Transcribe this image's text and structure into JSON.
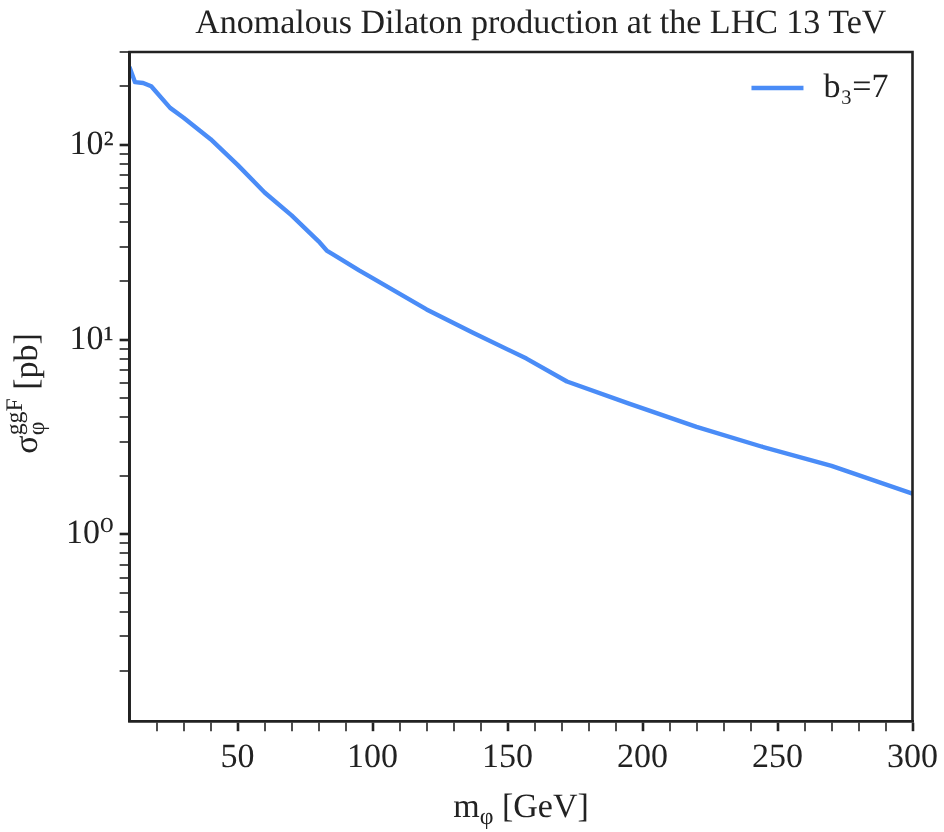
{
  "chart_data": {
    "type": "line",
    "title": "Anomalous Dilaton production at the LHC 13 TeV",
    "xlabel": "m$_{φ}$ [GeV]",
    "ylabel": "σ$_{φ}$$^{ggF}$ [pb]",
    "log": "y",
    "legend": "top right",
    "grid": false,
    "marker": "none",
    "line_style": "solid",
    "xlim": [
      10,
      300
    ],
    "ylim": [
      0.11,
      300
    ],
    "xticks": [
      {
        "value": 20,
        "label": null
      },
      {
        "value": 30,
        "label": null
      },
      {
        "value": 40,
        "label": null
      },
      50,
      {
        "value": 60,
        "label": null
      },
      {
        "value": 70,
        "label": null
      },
      {
        "value": 80,
        "label": null
      },
      {
        "value": 90,
        "label": null
      },
      100,
      {
        "value": 110,
        "label": null
      },
      {
        "value": 120,
        "label": null
      },
      {
        "value": 130,
        "label": null
      },
      {
        "value": 140,
        "label": null
      },
      150,
      {
        "value": 160,
        "label": null
      },
      {
        "value": 170,
        "label": null
      },
      {
        "value": 180,
        "label": null
      },
      {
        "value": 190,
        "label": null
      },
      200,
      {
        "value": 210,
        "label": null
      },
      {
        "value": 220,
        "label": null
      },
      {
        "value": 230,
        "label": null
      },
      {
        "value": 240,
        "label": null
      },
      250,
      {
        "value": 260,
        "label": null
      },
      {
        "value": 270,
        "label": null
      },
      {
        "value": 280,
        "label": null
      },
      {
        "value": 290,
        "label": null
      },
      300
    ],
    "yticks": [
      {
        "value": 0.2,
        "label": null
      },
      {
        "value": 0.3,
        "label": null
      },
      {
        "value": 0.4,
        "label": null
      },
      {
        "value": 0.5,
        "label": null
      },
      {
        "value": 0.6,
        "label": null
      },
      {
        "value": 0.7,
        "label": null
      },
      {
        "value": 0.8,
        "label": null
      },
      {
        "value": 0.9,
        "label": null
      },
      {
        "value": 1,
        "label": "10⁰"
      },
      {
        "value": 2,
        "label": null
      },
      {
        "value": 3,
        "label": null
      },
      {
        "value": 4,
        "label": null
      },
      {
        "value": 5,
        "label": null
      },
      {
        "value": 6,
        "label": null
      },
      {
        "value": 7,
        "label": null
      },
      {
        "value": 8,
        "label": null
      },
      {
        "value": 9,
        "label": null
      },
      {
        "value": 10,
        "label": "10¹"
      },
      {
        "value": 20,
        "label": null
      },
      {
        "value": 30,
        "label": null
      },
      {
        "value": 40,
        "label": null
      },
      {
        "value": 50,
        "label": null
      },
      {
        "value": 60,
        "label": null
      },
      {
        "value": 70,
        "label": null
      },
      {
        "value": 80,
        "label": null
      },
      {
        "value": 90,
        "label": null
      },
      {
        "value": 100,
        "label": "10²"
      },
      {
        "value": 200,
        "label": null
      },
      {
        "value": 300,
        "label": null
      }
    ],
    "series": [
      {
        "name": "b₃=7",
        "color": "#4a8cf7",
        "x": [
          10,
          12,
          15,
          18,
          25,
          30,
          40,
          50,
          60,
          70,
          80,
          83,
          95,
          100,
          120,
          137,
          157,
          172,
          195,
          220,
          244,
          270,
          300
        ],
        "values": [
          250,
          210,
          208,
          200,
          155,
          138,
          107,
          79,
          57,
          43.5,
          32,
          28.7,
          22.7,
          20.7,
          14.3,
          10.9,
          8.0,
          6.1,
          4.7,
          3.57,
          2.83,
          2.25,
          1.62
        ]
      }
    ]
  }
}
